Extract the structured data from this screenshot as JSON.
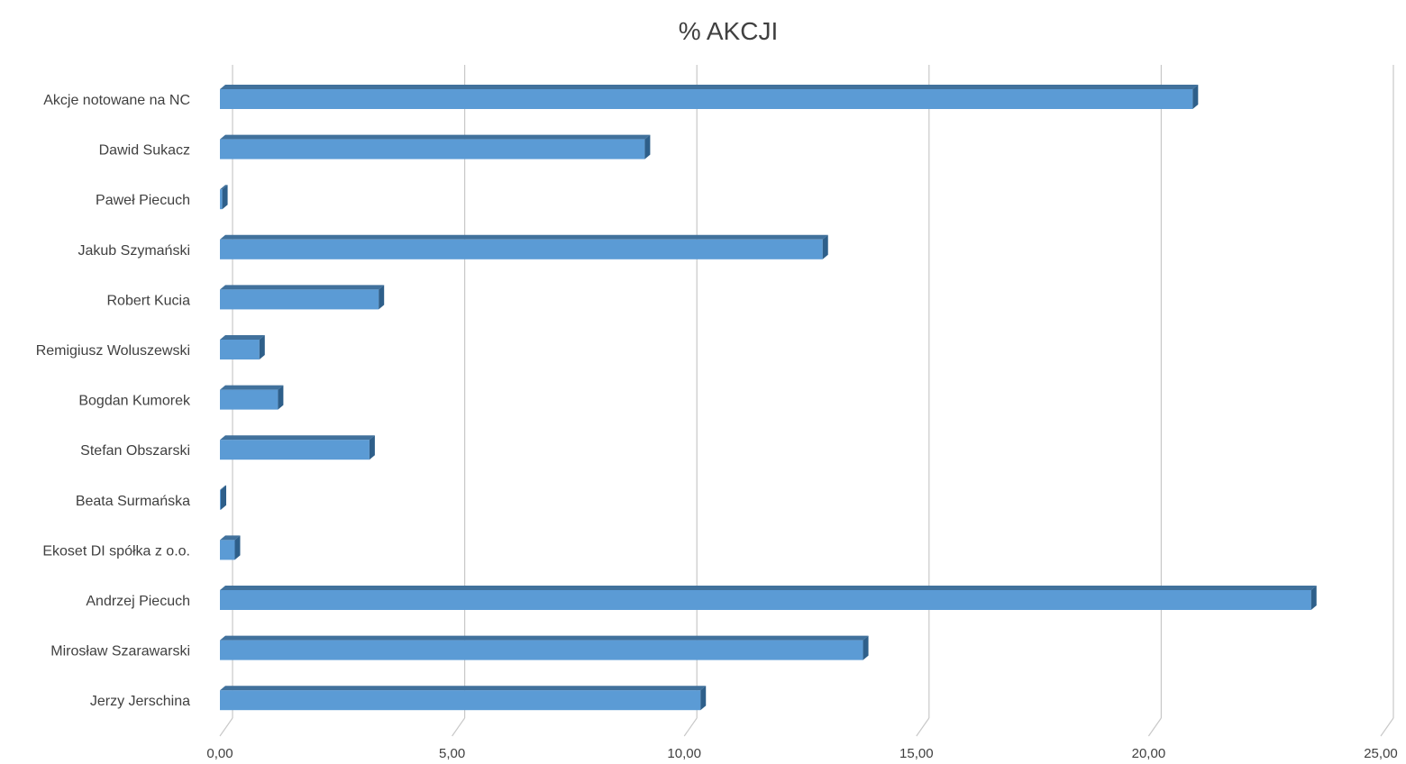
{
  "chart_data": {
    "type": "bar",
    "orientation": "horizontal",
    "title": "% AKCJI",
    "categories": [
      "Akcje notowane na NC",
      "Dawid Sukacz",
      "Paweł Piecuch",
      "Jakub Szymański",
      "Robert Kucia",
      "Remigiusz Woluszewski",
      "Bogdan Kumorek",
      "Stefan Obszarski",
      "Beata Surmańska",
      "Ekoset DI spółka z o.o.",
      "Andrzej Piecuch",
      "Mirosław Szarawarski",
      "Jerzy Jerschina"
    ],
    "values": [
      20.95,
      9.15,
      0.05,
      12.98,
      3.42,
      0.85,
      1.25,
      3.22,
      0.0,
      0.32,
      23.5,
      13.85,
      10.35
    ],
    "xlim": [
      0,
      25
    ],
    "x_ticks": [
      "0,00",
      "5,00",
      "10,00",
      "15,00",
      "20,00",
      "25,00"
    ],
    "xlabel": "",
    "ylabel": "",
    "grid": true,
    "legend": "none",
    "colors": {
      "bar_front": "#5b9bd5",
      "bar_top": "#41719c",
      "bar_side": "#2e5f8a",
      "grid": "#c8c8c8",
      "text": "#404040"
    }
  }
}
